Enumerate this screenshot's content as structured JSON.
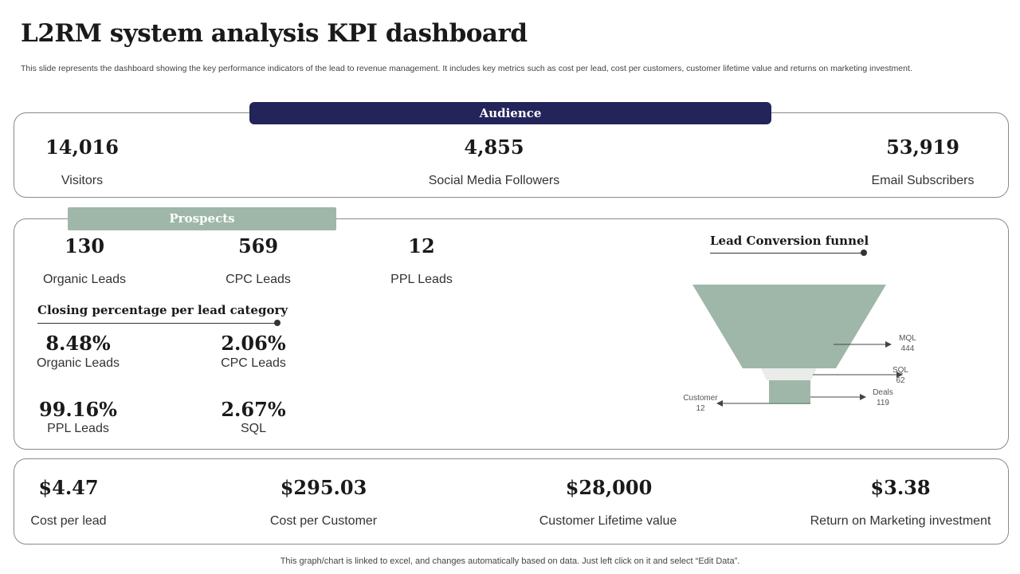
{
  "title": "L2RM system analysis KPI dashboard",
  "subtitle": "This slide represents the dashboard showing the key performance indicators of the lead to revenue management. It includes key metrics such as cost per lead, cost per customers, customer lifetime value and returns on marketing investment.",
  "audience": {
    "banner": "Audience",
    "metrics": [
      {
        "value": "14,016",
        "label": "Visitors"
      },
      {
        "value": "4,855",
        "label": "Social Media Followers"
      },
      {
        "value": "53,919",
        "label": "Email Subscribers"
      }
    ]
  },
  "prospects": {
    "banner": "Prospects",
    "leads": [
      {
        "value": "130",
        "label": "Organic Leads"
      },
      {
        "value": "569",
        "label": "CPC Leads"
      },
      {
        "value": "12",
        "label": "PPL Leads"
      }
    ],
    "closing_heading": "Closing percentage per lead category",
    "closing": [
      {
        "value": "8.48%",
        "label": "Organic Leads"
      },
      {
        "value": "2.06%",
        "label": "CPC Leads"
      },
      {
        "value": "99.16%",
        "label": "PPL Leads"
      },
      {
        "value": "2.67%",
        "label": "SQL"
      }
    ],
    "funnel_heading": "Lead Conversion funnel",
    "funnel": [
      {
        "name": "MQL",
        "value": "444"
      },
      {
        "name": "SQL",
        "value": "62"
      },
      {
        "name": "Deals",
        "value": "119"
      },
      {
        "name": "Customer",
        "value": "12"
      }
    ]
  },
  "costs": [
    {
      "value": "$4.47",
      "label": "Cost per lead"
    },
    {
      "value": "$295.03",
      "label": "Cost per Customer"
    },
    {
      "value": "$28,000",
      "label": "Customer Lifetime value"
    },
    {
      "value": "$3.38",
      "label": "Return on Marketing investment"
    }
  ],
  "footer": "This graph/chart is linked to excel, and changes automatically based on data. Just left click on it and select “Edit Data”.",
  "colors": {
    "navy": "#23245a",
    "sage": "#9fb7a9",
    "funnel_light": "#e9ece9",
    "funnel_dark": "#7f9f8c"
  }
}
